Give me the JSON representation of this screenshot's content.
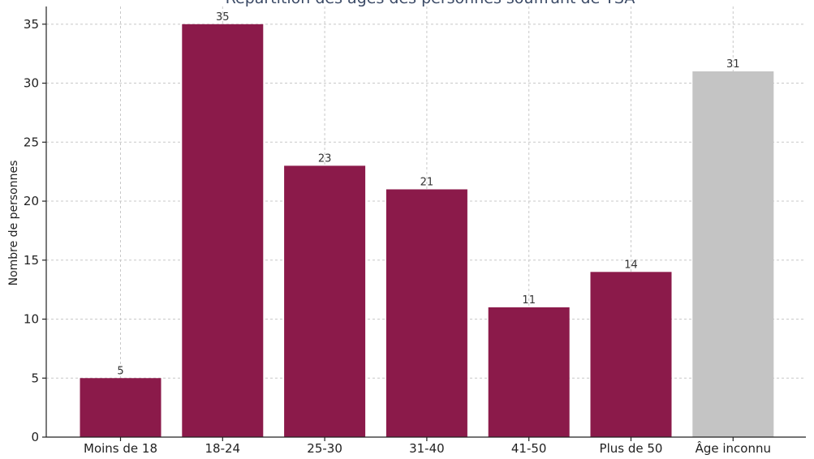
{
  "chart_data": {
    "type": "bar",
    "title": "Répartition des âges des personnes souffrant de TSA",
    "xlabel": "",
    "ylabel": "Nombre de personnes",
    "categories": [
      "Moins de 18",
      "18-24",
      "25-30",
      "31-40",
      "41-50",
      "Plus de 50",
      "Âge inconnu"
    ],
    "values": [
      5,
      35,
      23,
      21,
      11,
      14,
      31
    ],
    "bar_colors": [
      "#8b1a4a",
      "#8b1a4a",
      "#8b1a4a",
      "#8b1a4a",
      "#8b1a4a",
      "#8b1a4a",
      "#c4c4c4"
    ],
    "ylim": [
      0,
      36.5
    ],
    "yticks": [
      0,
      5,
      10,
      15,
      20,
      25,
      30,
      35
    ],
    "grid": true,
    "legend": "none"
  }
}
